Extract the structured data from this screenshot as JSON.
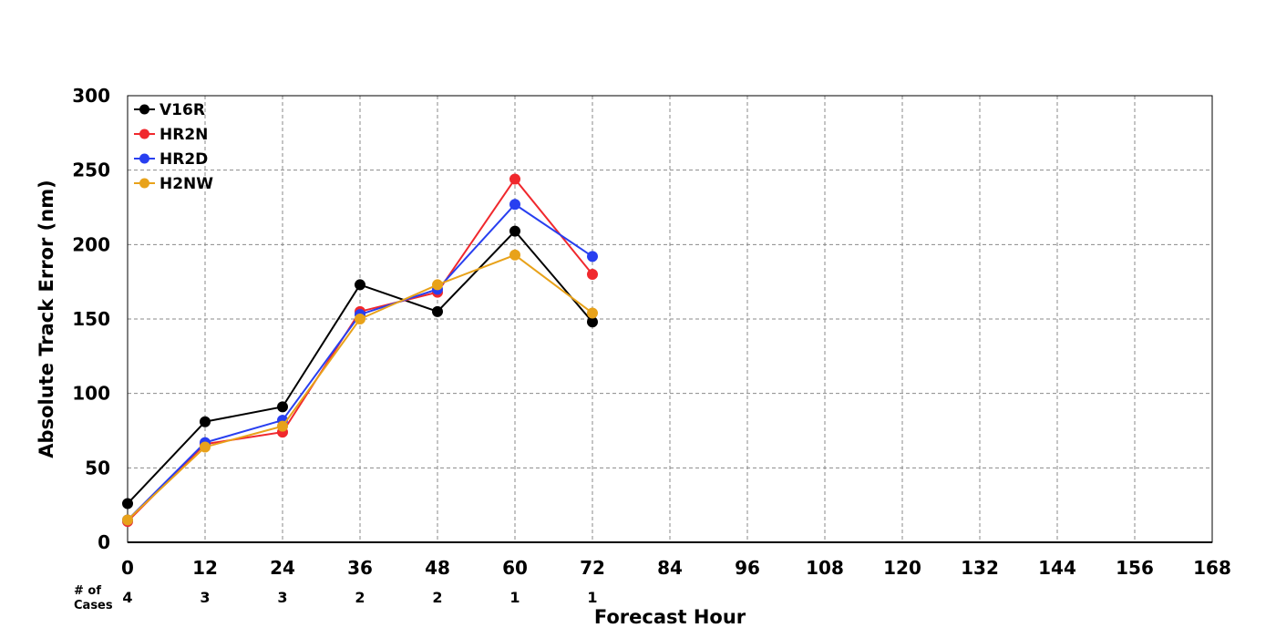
{
  "chart_data": {
    "type": "line",
    "xlabel": "Forecast Hour",
    "ylabel": "Absolute Track Error (nm)",
    "xlim": [
      0,
      168
    ],
    "ylim": [
      0,
      300
    ],
    "x_ticks": [
      0,
      12,
      24,
      36,
      48,
      60,
      72,
      84,
      96,
      108,
      120,
      132,
      144,
      156,
      168
    ],
    "y_ticks": [
      0,
      50,
      100,
      150,
      200,
      250,
      300
    ],
    "grid": true,
    "legend_position": "top-left",
    "cases_label_line1": "# of",
    "cases_label_line2": "Cases",
    "cases": [
      {
        "x": 0,
        "count": "4"
      },
      {
        "x": 12,
        "count": "3"
      },
      {
        "x": 24,
        "count": "3"
      },
      {
        "x": 36,
        "count": "2"
      },
      {
        "x": 48,
        "count": "2"
      },
      {
        "x": 60,
        "count": "1"
      },
      {
        "x": 72,
        "count": "1"
      }
    ],
    "series": [
      {
        "name": "V16R",
        "color": "#000000",
        "x": [
          0,
          12,
          24,
          36,
          48,
          60,
          72
        ],
        "values": [
          26,
          81,
          91,
          173,
          155,
          209,
          148
        ]
      },
      {
        "name": "HR2N",
        "color": "#f0282d",
        "x": [
          0,
          12,
          24,
          36,
          48,
          60,
          72
        ],
        "values": [
          14,
          66,
          74,
          155,
          168,
          244,
          180
        ]
      },
      {
        "name": "HR2D",
        "color": "#283ff0",
        "x": [
          0,
          12,
          24,
          36,
          48,
          60,
          72
        ],
        "values": [
          15,
          67,
          82,
          153,
          170,
          227,
          192
        ]
      },
      {
        "name": "H2NW",
        "color": "#e8a21a",
        "x": [
          0,
          12,
          24,
          36,
          48,
          60,
          72
        ],
        "values": [
          15,
          64,
          78,
          150,
          173,
          193,
          154
        ]
      }
    ]
  }
}
